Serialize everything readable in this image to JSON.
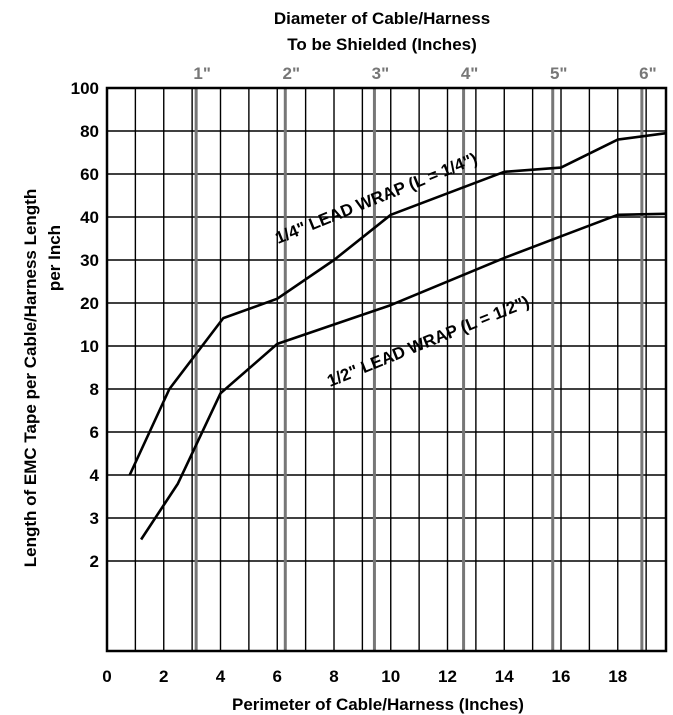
{
  "chart_data": {
    "type": "line",
    "title": "",
    "top_axis": {
      "title_line1": "Diameter of Cable/Harness",
      "title_line2": "To be Shielded (Inches)",
      "ticks": [
        {
          "label": "1\"",
          "diameter": 1
        },
        {
          "label": "2\"",
          "diameter": 2
        },
        {
          "label": "3\"",
          "diameter": 3
        },
        {
          "label": "4\"",
          "diameter": 4
        },
        {
          "label": "5\"",
          "diameter": 5
        },
        {
          "label": "6\"",
          "diameter": 6
        }
      ]
    },
    "xlabel": "Perimeter of Cable/Harness (Inches)",
    "ylabel_line1": "Length of EMC Tape per Cable/Harness Length",
    "ylabel_line2": "per Inch",
    "xlim": [
      0,
      19.7
    ],
    "x_ticks": [
      "0",
      "2",
      "4",
      "6",
      "8",
      "10",
      "12",
      "14",
      "16",
      "18"
    ],
    "y_ticks": [
      "100",
      "80",
      "60",
      "40",
      "30",
      "20",
      "10",
      "8",
      "6",
      "4",
      "3",
      "2"
    ],
    "grid": true,
    "series": [
      {
        "name": "1/4\" LEAD WRAP (L = 1/4\")",
        "points": [
          [
            0.8,
            4
          ],
          [
            2.2,
            8
          ],
          [
            4.1,
            16.5
          ],
          [
            6.0,
            21
          ],
          [
            8.0,
            30
          ],
          [
            10.0,
            41
          ],
          [
            14.0,
            61
          ],
          [
            16.0,
            63
          ],
          [
            18.0,
            76
          ],
          [
            19.7,
            79
          ]
        ]
      },
      {
        "name": "1/2\" LEAD WRAP (L = 1/2\")",
        "points": [
          [
            1.2,
            2.5
          ],
          [
            2.5,
            3.8
          ],
          [
            4.0,
            7.8
          ],
          [
            6.0,
            10.5
          ],
          [
            8.0,
            15
          ],
          [
            10.0,
            19.5
          ],
          [
            14.0,
            30.5
          ],
          [
            16.0,
            35.5
          ],
          [
            18.0,
            41
          ],
          [
            19.7,
            41.5
          ]
        ]
      }
    ]
  }
}
